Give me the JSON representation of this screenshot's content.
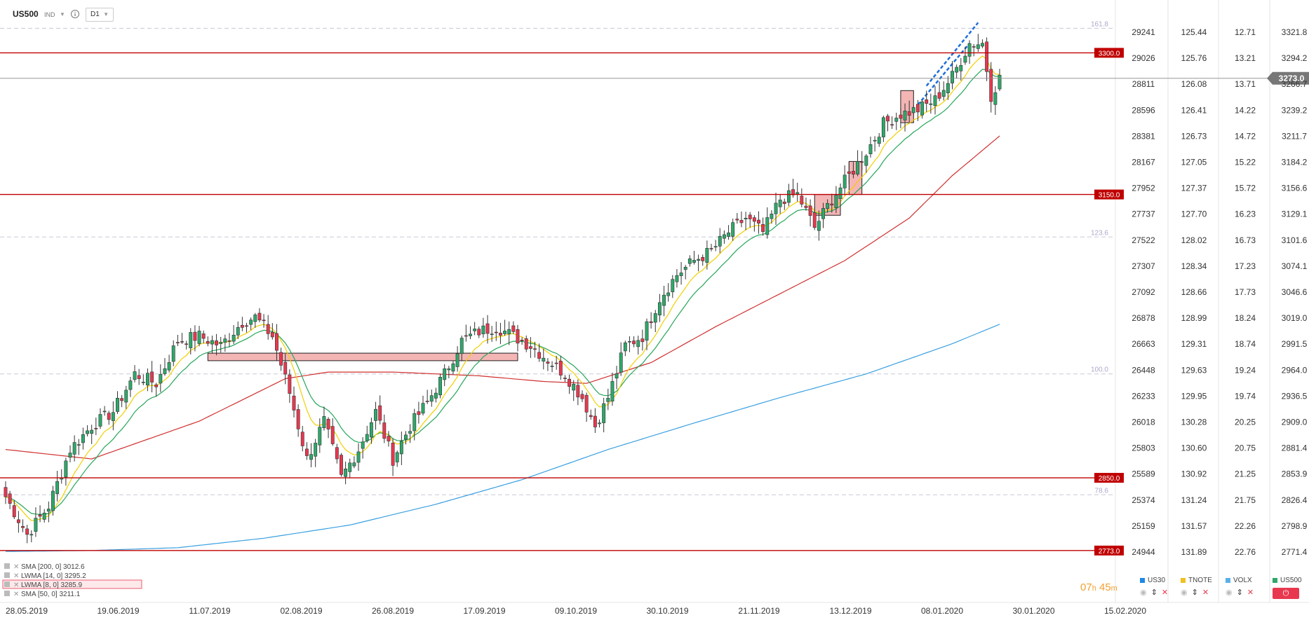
{
  "toolbar": {
    "symbol": "US500",
    "indicator_label": "IND",
    "timeframe": "D1"
  },
  "colors": {
    "up": "#2ea86a",
    "down": "#e8384f",
    "ema8": "#f0d000",
    "ema14": "#26a65b",
    "sma50": "#d03030",
    "sma200": "#3aa0e0",
    "hline": "#c00000",
    "current": "#888888"
  },
  "chart_data": {
    "type": "candlestick",
    "title": "US500",
    "timeframe": "D1",
    "x_tick_labels": [
      "28.05.2019",
      "19.06.2019",
      "11.07.2019",
      "02.08.2019",
      "26.08.2019",
      "17.09.2019",
      "09.10.2019",
      "30.10.2019",
      "21.11.2019",
      "13.12.2019",
      "08.01.2020",
      "30.01.2020",
      "15.02.2020"
    ],
    "axes": [
      {
        "name": "US30",
        "ticks": [
          "29241",
          "29026",
          "28811",
          "28596",
          "28381",
          "28167",
          "27952",
          "27737",
          "27522",
          "27307",
          "27092",
          "26878",
          "26663",
          "26448",
          "26233",
          "26018",
          "25803",
          "25589",
          "25374",
          "25159",
          "24944"
        ]
      },
      {
        "name": "TNOTE",
        "ticks": [
          "125.44",
          "125.76",
          "126.08",
          "126.41",
          "126.73",
          "127.05",
          "127.37",
          "127.70",
          "128.02",
          "128.34",
          "128.66",
          "128.99",
          "129.31",
          "129.63",
          "129.95",
          "130.28",
          "130.60",
          "130.92",
          "131.24",
          "131.57",
          "131.89"
        ]
      },
      {
        "name": "VOLX",
        "ticks": [
          "12.71",
          "13.21",
          "13.71",
          "14.22",
          "14.72",
          "15.22",
          "15.72",
          "16.23",
          "16.73",
          "17.23",
          "17.73",
          "18.24",
          "18.74",
          "19.24",
          "19.74",
          "20.25",
          "20.75",
          "21.25",
          "21.75",
          "22.26",
          "22.76"
        ]
      },
      {
        "name": "US500",
        "ticks": [
          "3321.8",
          "3294.2",
          "3266.7",
          "3239.2",
          "3211.7",
          "3184.2",
          "3156.6",
          "3129.1",
          "3101.6",
          "3074.1",
          "3046.6",
          "3019.0",
          "2991.5",
          "2964.0",
          "2936.5",
          "2909.0",
          "2881.4",
          "2853.9",
          "2826.4",
          "2798.9",
          "2771.4"
        ]
      }
    ],
    "ylim": [
      2771.4,
      3321.8
    ],
    "current_price": "3273.0",
    "horizontal_levels": [
      {
        "label": "3300.0",
        "value": 3300.0
      },
      {
        "label": "3150.0",
        "value": 3150.0
      },
      {
        "label": "2850.0",
        "value": 2850.0
      },
      {
        "label": "2773.0",
        "value": 2773.0
      }
    ],
    "fib_levels": [
      {
        "label": "161.8",
        "value": 3326.0
      },
      {
        "label": "123.6",
        "value": 3105.0
      },
      {
        "label": "100.0",
        "value": 2960.0
      },
      {
        "label": "78.6",
        "value": 2832.0
      }
    ],
    "indicators": [
      {
        "label": "SMA [200, 0] 3012.6"
      },
      {
        "label": "LWMA [14, 0] 3295.2"
      },
      {
        "label": "LWMA [8, 0] 3285.9"
      },
      {
        "label": "SMA [50, 0] 3211.1"
      }
    ],
    "close_anchors": [
      [
        0,
        2830
      ],
      [
        5,
        2790
      ],
      [
        10,
        2820
      ],
      [
        15,
        2880
      ],
      [
        20,
        2905
      ],
      [
        25,
        2920
      ],
      [
        30,
        2960
      ],
      [
        35,
        2950
      ],
      [
        40,
        2995
      ],
      [
        45,
        3000
      ],
      [
        50,
        2990
      ],
      [
        55,
        3015
      ],
      [
        58,
        3020
      ],
      [
        62,
        3000
      ],
      [
        66,
        2940
      ],
      [
        70,
        2870
      ],
      [
        74,
        2910
      ],
      [
        78,
        2850
      ],
      [
        82,
        2880
      ],
      [
        86,
        2920
      ],
      [
        90,
        2870
      ],
      [
        94,
        2905
      ],
      [
        98,
        2930
      ],
      [
        102,
        2960
      ],
      [
        106,
        2995
      ],
      [
        110,
        3005
      ],
      [
        114,
        3010
      ],
      [
        118,
        3000
      ],
      [
        122,
        2990
      ],
      [
        126,
        2975
      ],
      [
        130,
        2960
      ],
      [
        134,
        2935
      ],
      [
        137,
        2905
      ],
      [
        140,
        2935
      ],
      [
        144,
        2990
      ],
      [
        148,
        3000
      ],
      [
        152,
        3040
      ],
      [
        156,
        3065
      ],
      [
        160,
        3080
      ],
      [
        164,
        3090
      ],
      [
        168,
        3110
      ],
      [
        172,
        3125
      ],
      [
        176,
        3110
      ],
      [
        180,
        3145
      ],
      [
        184,
        3150
      ],
      [
        188,
        3115
      ],
      [
        192,
        3145
      ],
      [
        196,
        3170
      ],
      [
        200,
        3195
      ],
      [
        204,
        3225
      ],
      [
        208,
        3235
      ],
      [
        212,
        3240
      ],
      [
        216,
        3250
      ],
      [
        220,
        3275
      ],
      [
        224,
        3310
      ],
      [
        227,
        3310
      ],
      [
        229,
        3255
      ],
      [
        231,
        3273
      ]
    ],
    "sma50_anchors": [
      [
        0,
        2880
      ],
      [
        20,
        2870
      ],
      [
        45,
        2910
      ],
      [
        65,
        2955
      ],
      [
        75,
        2962
      ],
      [
        90,
        2962
      ],
      [
        110,
        2958
      ],
      [
        125,
        2952
      ],
      [
        135,
        2950
      ],
      [
        150,
        2972
      ],
      [
        165,
        3010
      ],
      [
        180,
        3045
      ],
      [
        195,
        3080
      ],
      [
        210,
        3125
      ],
      [
        220,
        3170
      ],
      [
        231,
        3212
      ]
    ],
    "sma200_anchors": [
      [
        0,
        2772
      ],
      [
        20,
        2773
      ],
      [
        40,
        2776
      ],
      [
        60,
        2786
      ],
      [
        80,
        2800
      ],
      [
        100,
        2822
      ],
      [
        120,
        2848
      ],
      [
        140,
        2880
      ],
      [
        160,
        2908
      ],
      [
        180,
        2935
      ],
      [
        200,
        2960
      ],
      [
        220,
        2992
      ],
      [
        231,
        3012.6
      ]
    ]
  },
  "right_panel": {
    "instruments": [
      {
        "name": "US30",
        "color": "#1e88e5"
      },
      {
        "name": "TNOTE",
        "color": "#f0c020"
      },
      {
        "name": "VOLX",
        "color": "#5ab0e8"
      },
      {
        "name": "US500",
        "color": "#2ea86a"
      }
    ],
    "timer": {
      "hours": "07",
      "h": "h",
      "minutes": "45",
      "m": "m"
    }
  }
}
